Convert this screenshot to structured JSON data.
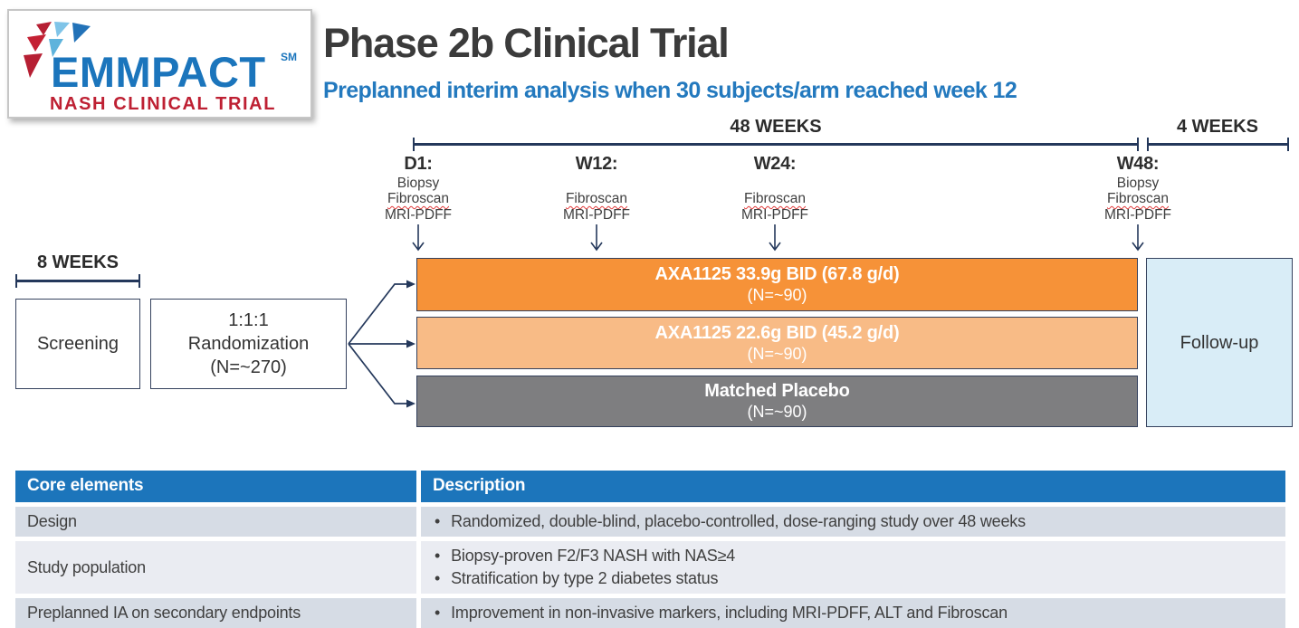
{
  "logo": {
    "name": "EMMPACT",
    "trademark": "SM",
    "tagline": "NASH CLINICAL TRIAL"
  },
  "header": {
    "title": "Phase 2b Clinical Trial",
    "subtitle": "Preplanned interim analysis when 30 subjects/arm reached week 12"
  },
  "timeline": {
    "treatment_span_label": "48 WEEKS",
    "followup_span_label": "4 WEEKS",
    "screening_span_label": "8 WEEKS",
    "timepoints": [
      {
        "label": "D1:",
        "assessments": [
          "Biopsy",
          "Fibroscan",
          "MRI-PDFF"
        ]
      },
      {
        "label": "W12:",
        "assessments": [
          "Fibroscan",
          "MRI-PDFF"
        ]
      },
      {
        "label": "W24:",
        "assessments": [
          "Fibroscan",
          "MRI-PDFF"
        ]
      },
      {
        "label": "W48:",
        "assessments": [
          "Biopsy",
          "Fibroscan",
          "MRI-PDFF"
        ]
      }
    ],
    "spellcheck_flagged_terms": [
      "Fibroscan"
    ]
  },
  "flow": {
    "screening_box_label": "Screening",
    "randomization_box_lines": [
      "1:1:1",
      "Randomization",
      "(N=~270)"
    ],
    "arms": [
      {
        "dose": "AXA1125 33.9g BID (67.8 g/d)",
        "n": "(N=~90)",
        "fill": "#F69238"
      },
      {
        "dose": "AXA1125 22.6g BID (45.2 g/d)",
        "n": "(N=~90)",
        "fill": "#F8BB86"
      },
      {
        "dose": "Matched Placebo",
        "n": "(N=~90)",
        "fill": "#7E7E80"
      }
    ],
    "followup_box_label": "Follow-up"
  },
  "table": {
    "headers": [
      "Core elements",
      "Description"
    ],
    "rows": [
      {
        "element": "Design",
        "descriptions": [
          "Randomized, double-blind, placebo-controlled, dose-ranging study over 48 weeks"
        ]
      },
      {
        "element": "Study population",
        "descriptions": [
          "Biopsy-proven F2/F3 NASH with NAS≥4",
          "Stratification by type 2 diabetes status"
        ]
      },
      {
        "element": "Preplanned IA on secondary endpoints",
        "descriptions": [
          "Improvement in non-invasive markers, including MRI-PDFF, ALT and Fibroscan"
        ]
      }
    ]
  },
  "colors": {
    "accent_blue": "#1C75BB",
    "subtitle_blue": "#2379BE",
    "logo_blue": "#1B75BC",
    "logo_red": "#BE2033",
    "line_navy": "#24385B",
    "arm_high_dose_orange": "#F69238",
    "arm_low_dose_orange": "#F8BB86",
    "arm_placebo_gray": "#7E7E80",
    "followup_bg": "#D9EDF7",
    "table_row_bg": "#D6DCE5",
    "table_row_alt_bg": "#EAECF2"
  }
}
